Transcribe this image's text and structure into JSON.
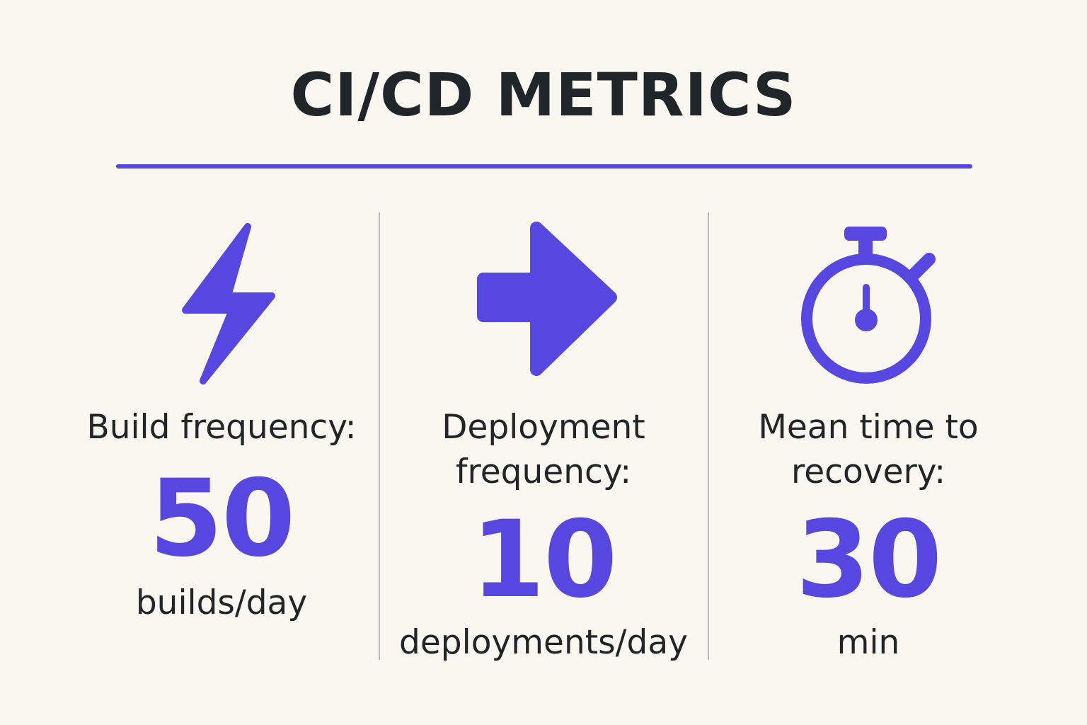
{
  "title": "CI/CD METRICS",
  "colors": {
    "accent": "#5647e0",
    "text": "#1f2528",
    "background": "#faf7f1",
    "divider": "#b9b9b9"
  },
  "metrics": [
    {
      "icon": "lightning-bolt-icon",
      "label": "Build frequency:",
      "value": "50",
      "unit": "builds/day"
    },
    {
      "icon": "arrow-right-icon",
      "label_line1": "Deployment",
      "label_line2": "frequency:",
      "value": "10",
      "unit": "deployments/day"
    },
    {
      "icon": "stopwatch-icon",
      "label_line1": "Mean time to",
      "label_line2": "recovery:",
      "value": "30",
      "unit": "min"
    }
  ]
}
